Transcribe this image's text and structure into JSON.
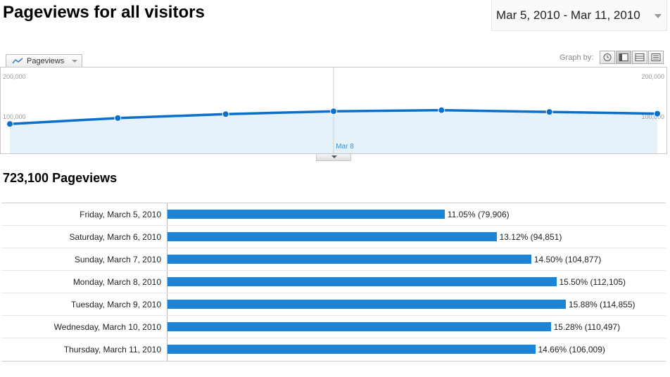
{
  "header": {
    "title": "Pageviews for all visitors",
    "date_range": "Mar 5, 2010 - Mar 11, 2010"
  },
  "toolbar": {
    "metric_tab_label": "Pageviews",
    "graph_by_label": "Graph by:",
    "graph_by_options": [
      "day-icon",
      "week-icon",
      "month-icon",
      "list-icon"
    ]
  },
  "total": {
    "label": "723,100 Pageviews"
  },
  "colors": {
    "line": "#0b6fcc",
    "area": "#e6f2fa",
    "bar": "#1a85d8"
  },
  "chart_data": [
    {
      "type": "line",
      "x": [
        "Mar 5",
        "Mar 6",
        "Mar 7",
        "Mar 8",
        "Mar 9",
        "Mar 10",
        "Mar 11"
      ],
      "values": [
        79906,
        94851,
        104877,
        112105,
        114855,
        110497,
        106009
      ],
      "y_tick_labels": [
        "200,000",
        "100,000"
      ],
      "y_axis_left_labels": [
        "200,000",
        "100,000"
      ],
      "y_axis_right_labels": [
        "200,000",
        "100,000"
      ],
      "ylim": [
        0,
        200000
      ],
      "annotation_label": "Mar 8",
      "annotation_x": "Mar 8",
      "fill_area": true,
      "grid": false
    },
    {
      "type": "bar",
      "orientation": "horizontal",
      "categories": [
        "Friday, March 5, 2010",
        "Saturday, March 6, 2010",
        "Sunday, March 7, 2010",
        "Monday, March 8, 2010",
        "Tuesday, March 9, 2010",
        "Wednesday, March 10, 2010",
        "Thursday, March 11, 2010"
      ],
      "values": [
        79906,
        94851,
        104877,
        112105,
        114855,
        110497,
        106009
      ],
      "percent": [
        11.05,
        13.12,
        14.5,
        15.5,
        15.88,
        15.28,
        14.66
      ],
      "value_labels": [
        "11.05% (79,906)",
        "13.12% (94,851)",
        "14.50% (104,877)",
        "15.50% (112,105)",
        "15.88% (114,855)",
        "15.28% (110,497)",
        "14.66% (106,009)"
      ]
    }
  ]
}
